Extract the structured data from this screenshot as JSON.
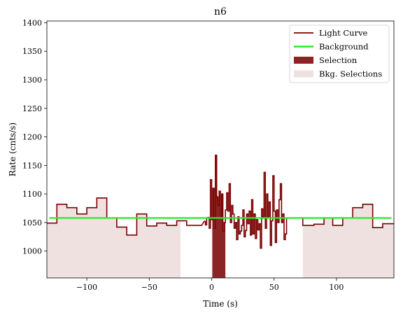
{
  "chart_data": {
    "type": "line",
    "title": "n6",
    "xlabel": "Time (s)",
    "ylabel": "Rate (cnts/s)",
    "xlim": [
      -132,
      146
    ],
    "ylim": [
      953,
      1403
    ],
    "x_ticks": [
      -100,
      -50,
      0,
      50,
      100
    ],
    "y_ticks": [
      1000,
      1050,
      1100,
      1150,
      1200,
      1250,
      1300,
      1350,
      1400
    ],
    "legend_position": "upper right",
    "grid": false,
    "colors": {
      "light_curve": "#7a0000",
      "background": "#22ee22",
      "selection": "#8b2424",
      "bkg_selection": "#f0e1e1"
    },
    "legend": [
      "Light Curve",
      "Background",
      "Selection",
      "Bkg. Selections"
    ],
    "background_level": 1058,
    "background_range": [
      -130,
      144
    ],
    "selection": {
      "x_range": [
        0.5,
        11
      ],
      "baseline": 953
    },
    "bkg_selections": [
      {
        "x_range": [
          -132,
          -25
        ]
      },
      {
        "x_range": [
          73,
          146
        ]
      }
    ],
    "light_curve_coarse_left": [
      {
        "x": [
          -132,
          -124
        ],
        "y": 1049
      },
      {
        "x": [
          -124,
          -116
        ],
        "y": 1082
      },
      {
        "x": [
          -116,
          -108
        ],
        "y": 1076
      },
      {
        "x": [
          -108,
          -100
        ],
        "y": 1065
      },
      {
        "x": [
          -100,
          -92
        ],
        "y": 1076
      },
      {
        "x": [
          -92,
          -84
        ],
        "y": 1093
      },
      {
        "x": [
          -84,
          -76
        ],
        "y": 1058
      },
      {
        "x": [
          -76,
          -68
        ],
        "y": 1042
      },
      {
        "x": [
          -68,
          -60
        ],
        "y": 1028
      },
      {
        "x": [
          -60,
          -52
        ],
        "y": 1065
      },
      {
        "x": [
          -52,
          -44
        ],
        "y": 1044
      },
      {
        "x": [
          -44,
          -36
        ],
        "y": 1049
      },
      {
        "x": [
          -36,
          -28
        ],
        "y": 1045
      },
      {
        "x": [
          -28,
          -20
        ],
        "y": 1053
      },
      {
        "x": [
          -20,
          -8
        ],
        "y": 1045
      }
    ],
    "light_curve_fine": {
      "x_start": -6,
      "bin_width": 1.0,
      "y": [
        1052,
        1046,
        1058,
        1059,
        1040,
        1125,
        1055,
        1110,
        1040,
        1168,
        1095,
        1080,
        1105,
        1058,
        1100,
        1035,
        1050,
        1072,
        1102,
        1070,
        1118,
        1050,
        1080,
        1065,
        1040,
        1050,
        1020,
        1060,
        1030,
        1035,
        1045,
        1072,
        1025,
        1036,
        1065,
        1048,
        1070,
        1028,
        1090,
        1030,
        1065,
        1022,
        1055,
        1037,
        1048,
        1005,
        1074,
        1060,
        1138,
        1040,
        1100,
        1060,
        1086,
        1010,
        1053,
        1132,
        1070,
        1015,
        1072,
        1050,
        1090,
        1118,
        1050,
        1065,
        1020,
        1030
      ]
    },
    "light_curve_coarse_right": [
      {
        "x": [
          60,
          73
        ],
        "y": 1058
      },
      {
        "x": [
          73,
          82
        ],
        "y": 1045
      },
      {
        "x": [
          82,
          90
        ],
        "y": 1047
      },
      {
        "x": [
          90,
          97
        ],
        "y": 1058
      },
      {
        "x": [
          97,
          105
        ],
        "y": 1045
      },
      {
        "x": [
          105,
          113
        ],
        "y": 1058
      },
      {
        "x": [
          113,
          121
        ],
        "y": 1076
      },
      {
        "x": [
          121,
          129
        ],
        "y": 1082
      },
      {
        "x": [
          129,
          137
        ],
        "y": 1041
      },
      {
        "x": [
          137,
          146
        ],
        "y": 1048
      }
    ]
  }
}
